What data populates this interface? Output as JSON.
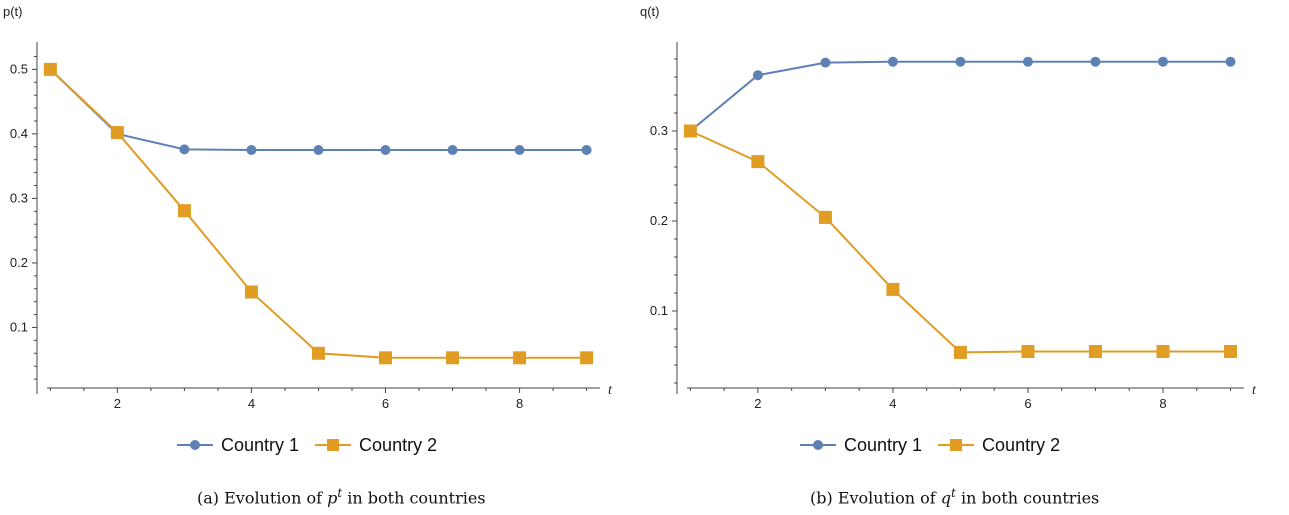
{
  "colors": {
    "series1": "#5e81b5",
    "series2": "#e19c24",
    "axis": "#444444"
  },
  "chart_data": [
    {
      "type": "line",
      "ylabel": "p(t)",
      "xlabel": "t",
      "xlim": [
        0.95,
        9.2
      ],
      "ylim": [
        0.0,
        0.53
      ],
      "xticks": [
        2,
        4,
        6,
        8
      ],
      "yticks": [
        0.1,
        0.2,
        0.3,
        0.4,
        0.5
      ],
      "x": [
        1,
        2,
        3,
        4,
        5,
        6,
        7,
        8,
        9
      ],
      "series": [
        {
          "name": "Country 1",
          "marker": "circle",
          "values": [
            0.5,
            0.4,
            0.376,
            0.375,
            0.375,
            0.375,
            0.375,
            0.375,
            0.375
          ]
        },
        {
          "name": "Country 2",
          "marker": "square",
          "values": [
            0.5,
            0.402,
            0.281,
            0.155,
            0.06,
            0.053,
            0.053,
            0.053,
            0.053
          ]
        }
      ],
      "legend": "bottom-center",
      "caption": {
        "prefix": "(a) Evolution of ",
        "var": "p",
        "sup": "t",
        "suffix": " in both countries"
      }
    },
    {
      "type": "line",
      "ylabel": "q(t)",
      "xlabel": "t",
      "xlim": [
        0.95,
        9.2
      ],
      "ylim": [
        0.01,
        0.39
      ],
      "xticks": [
        2,
        4,
        6,
        8
      ],
      "yticks": [
        0.1,
        0.2,
        0.3
      ],
      "x": [
        1,
        2,
        3,
        4,
        5,
        6,
        7,
        8,
        9
      ],
      "series": [
        {
          "name": "Country 1",
          "marker": "circle",
          "values": [
            0.3,
            0.362,
            0.376,
            0.377,
            0.377,
            0.377,
            0.377,
            0.377,
            0.377
          ]
        },
        {
          "name": "Country 2",
          "marker": "square",
          "values": [
            0.3,
            0.266,
            0.204,
            0.124,
            0.054,
            0.055,
            0.055,
            0.055,
            0.055
          ]
        }
      ],
      "legend": "bottom-center",
      "caption": {
        "prefix": "(b) Evolution of ",
        "var": "q",
        "sup": "t",
        "suffix": " in both countries"
      }
    }
  ]
}
